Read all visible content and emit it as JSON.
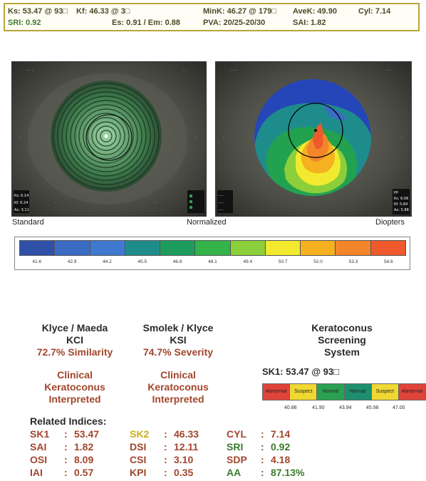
{
  "header": {
    "row1": [
      "Ks: 53.47 @ 93□",
      "Kf: 46.33 @ 3□",
      "MinK: 46.27 @ 179□",
      "AveK: 49.90",
      "Cyl: 7.14"
    ],
    "row2": [
      "SRI: 0.92",
      "Es: 0.91 / Em: 0.88",
      "PVA: 20/25-20/30",
      "SAI: 1.82"
    ]
  },
  "maps": {
    "left_caption": "Standard",
    "center_caption": "Normalized",
    "right_caption": "Diopters",
    "left_values": [
      "Ks: 6.14",
      "Kf: 6.24",
      "Ax: 3.11"
    ],
    "right_values": [
      "PP",
      "Ks: 6.06",
      "Kf: 5.84",
      "Ax: 5.88"
    ]
  },
  "scale": {
    "colors": [
      "#2f52a8",
      "#3a6cc4",
      "#3f7ad0",
      "#1f8c8c",
      "#1d9c5e",
      "#33b34a",
      "#8ccf3a",
      "#f2ea2e",
      "#f7b020",
      "#f3862a",
      "#ee5a2c"
    ],
    "ticks": [
      "41.6",
      "42.9",
      "44.2",
      "45.5",
      "46.8",
      "48.1",
      "49.4",
      "50.7",
      "52.0",
      "53.3",
      "54.6"
    ]
  },
  "kci": {
    "title1": "Klyce / Maeda",
    "title2": "KCI",
    "value": "72.7% Similarity",
    "interp": [
      "Clinical",
      "Keratoconus",
      "Interpreted"
    ]
  },
  "ksi": {
    "title1": "Smolek / Klyce",
    "title2": "KSI",
    "value": "74.7% Severity",
    "interp": [
      "Clinical",
      "Keratoconus",
      "Interpreted"
    ]
  },
  "kss": {
    "title": [
      "Keratoconus",
      "Screening",
      "System"
    ],
    "sk1": "SK1: 53.47 @ 93□",
    "segments": [
      {
        "label": "Abnormal",
        "color": "#e0433a"
      },
      {
        "label": "Suspect",
        "color": "#f0d832"
      },
      {
        "label": "Normal",
        "color": "#2aa152"
      },
      {
        "label": "Normal",
        "color": "#1d8f6e"
      },
      {
        "label": "Suspect",
        "color": "#f0d832"
      },
      {
        "label": "Abnormal",
        "color": "#e0433a"
      }
    ],
    "ticks": [
      "40.88",
      "41.90",
      "43.94",
      "45.98",
      "47.00"
    ]
  },
  "indices": {
    "title": "Related Indices:",
    "col1": [
      {
        "label": "SK1",
        "value": "53.47"
      },
      {
        "label": "SAI",
        "value": "1.82"
      },
      {
        "label": "OSI",
        "value": "8.09"
      },
      {
        "label": "IAI",
        "value": "0.57"
      }
    ],
    "col2": [
      {
        "label": "SK2",
        "value": "46.33"
      },
      {
        "label": "DSI",
        "value": "12.11"
      },
      {
        "label": "CSI",
        "value": "3.10"
      },
      {
        "label": "KPI",
        "value": "0.35"
      }
    ],
    "col3": [
      {
        "label": "CYL",
        "value": "7.14"
      },
      {
        "label": "SRI",
        "value": "0.92"
      },
      {
        "label": "SDP",
        "value": "4.18"
      },
      {
        "label": "AA",
        "value": "87.13%"
      }
    ]
  }
}
